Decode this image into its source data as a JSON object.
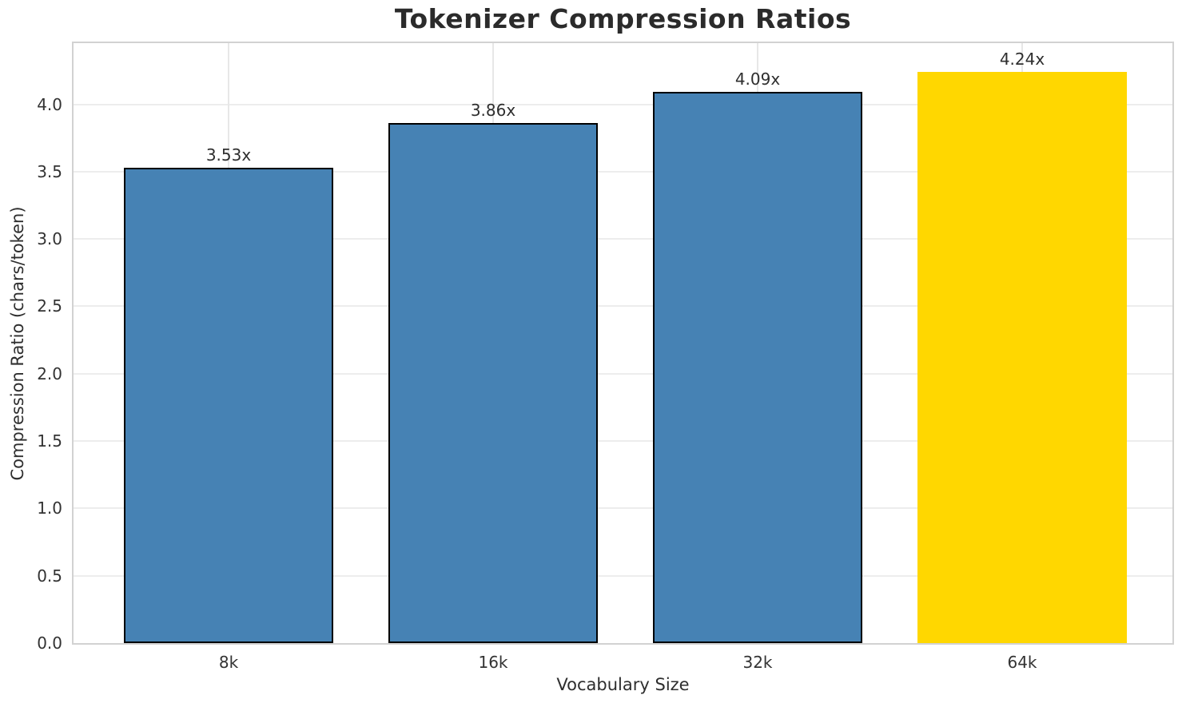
{
  "chart_data": {
    "type": "bar",
    "title": "Tokenizer Compression Ratios",
    "xlabel": "Vocabulary Size",
    "ylabel": "Compression Ratio (chars/token)",
    "categories": [
      "8k",
      "16k",
      "32k",
      "64k"
    ],
    "values": [
      3.53,
      3.86,
      4.09,
      4.24
    ],
    "bar_value_labels": [
      "3.53x",
      "3.86x",
      "4.09x",
      "4.24x"
    ],
    "bar_colors": [
      "#4682b4",
      "#4682b4",
      "#4682b4",
      "#ffd700"
    ],
    "bar_edge_colors": [
      "#000000",
      "#000000",
      "#000000",
      "none"
    ],
    "ylim": [
      0,
      4.45
    ],
    "ytick_labels": [
      "0.0",
      "0.5",
      "1.0",
      "1.5",
      "2.0",
      "2.5",
      "3.0",
      "3.5",
      "4.0"
    ],
    "ytick_values": [
      0,
      0.5,
      1.0,
      1.5,
      2.0,
      2.5,
      3.0,
      3.5,
      4.0
    ],
    "grid": true,
    "legend": "none",
    "colors": {
      "accent_blue": "#4682b4",
      "highlight_gold": "#ffd700",
      "text": "#2e2e2e",
      "grid": "#ededed",
      "spine": "#d2d2d2"
    }
  }
}
